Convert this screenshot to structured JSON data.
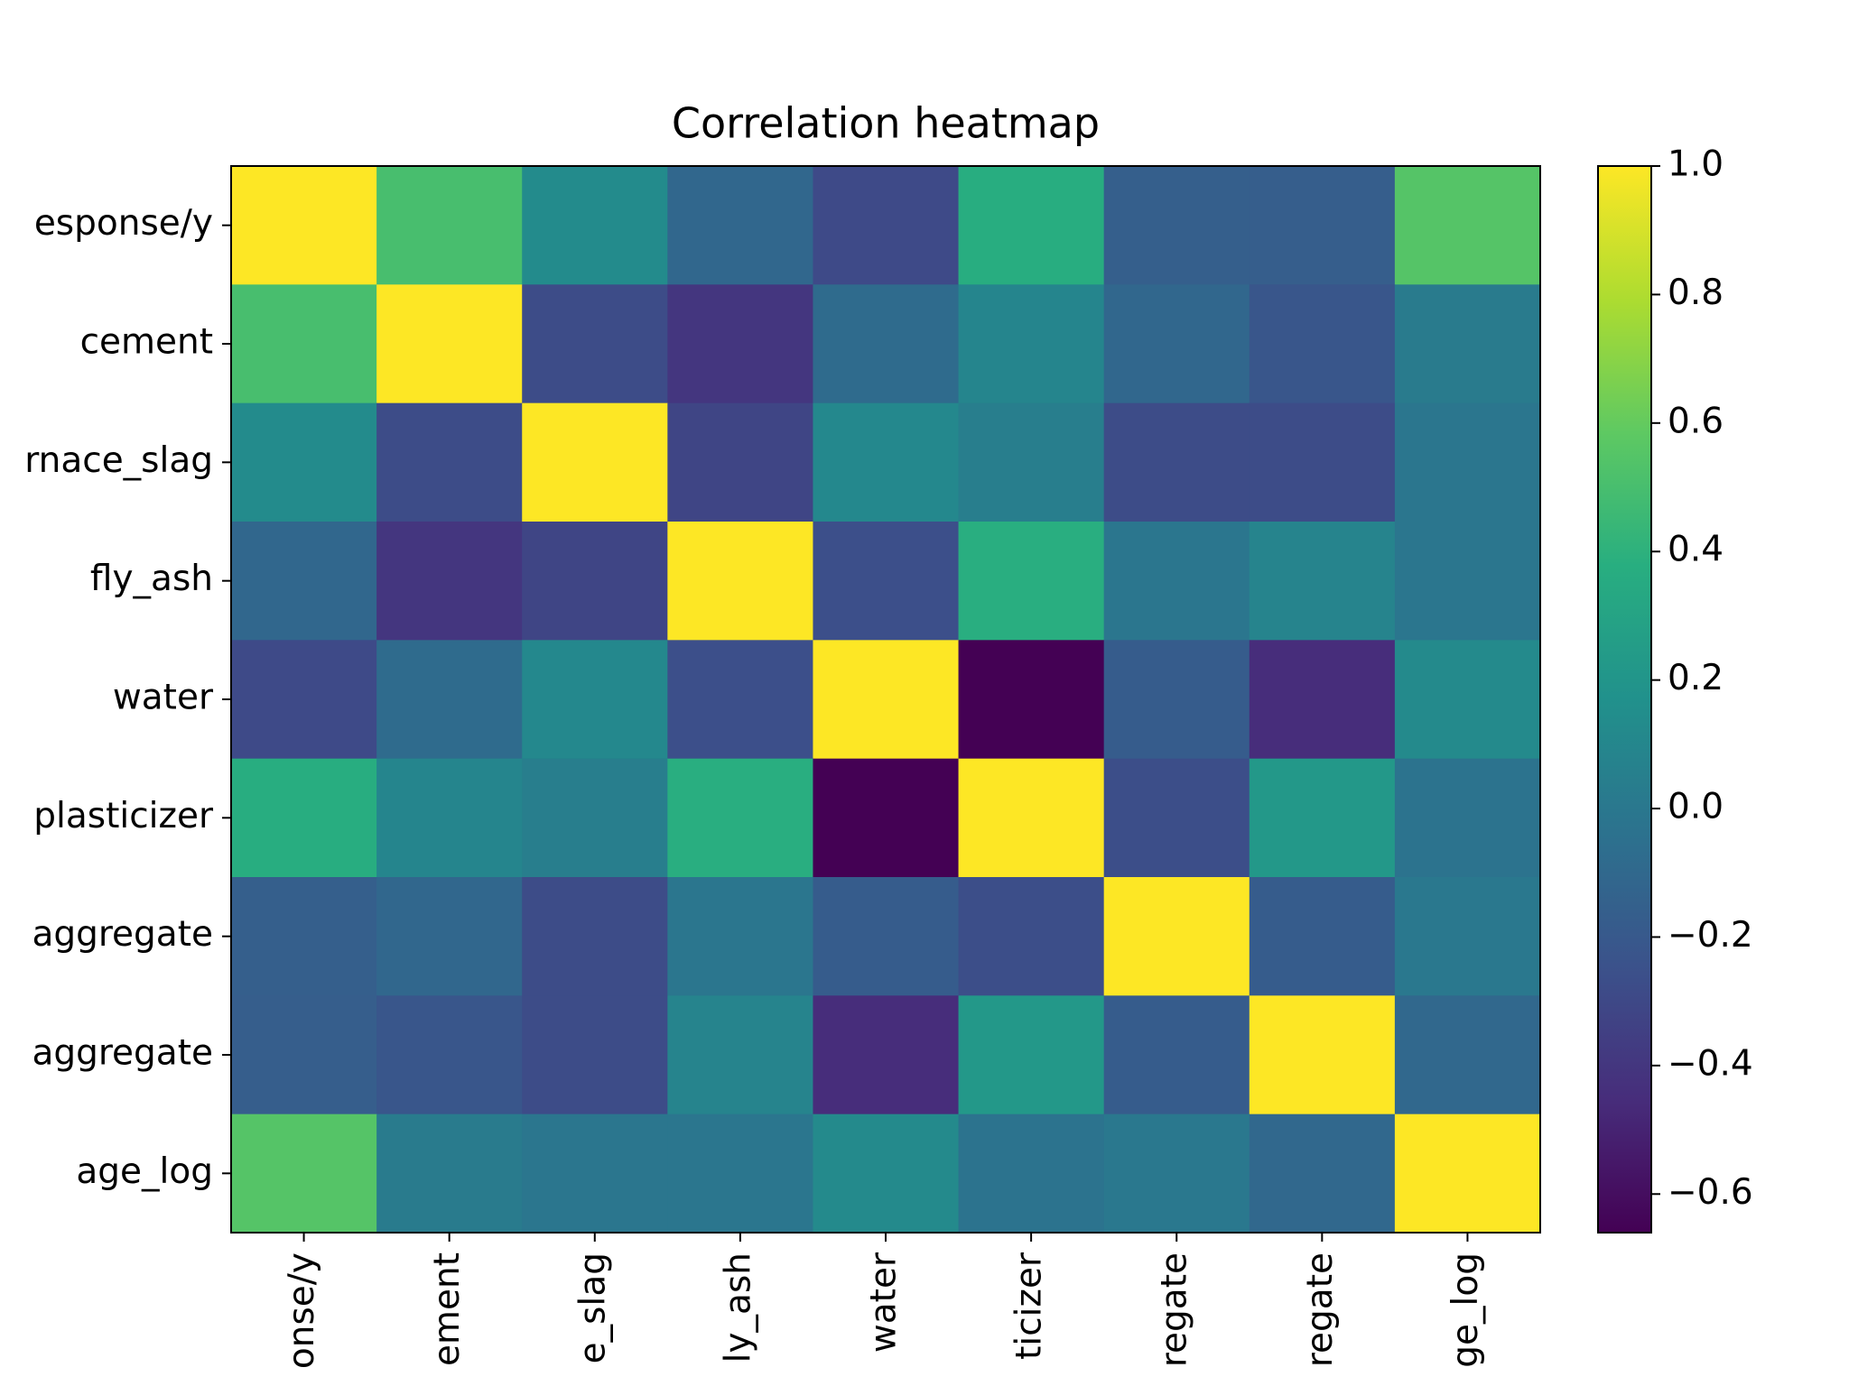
{
  "chart_data": {
    "type": "heatmap",
    "title": "Correlation heatmap",
    "y_categories": [
      "esponse/y",
      "cement",
      "rnace_slag",
      "fly_ash",
      "water",
      "plasticizer",
      "aggregate",
      "aggregate",
      "age_log"
    ],
    "x_categories": [
      "onse/y",
      "ement",
      "e_slag",
      "ly_ash",
      "water",
      "ticizer",
      "regate",
      "regate",
      "ge_log"
    ],
    "values": [
      [
        1.0,
        0.5,
        0.13,
        -0.11,
        -0.29,
        0.37,
        -0.16,
        -0.17,
        0.55
      ],
      [
        0.5,
        1.0,
        -0.28,
        -0.4,
        -0.08,
        0.09,
        -0.11,
        -0.22,
        0.02
      ],
      [
        0.13,
        -0.28,
        1.0,
        -0.32,
        0.11,
        0.04,
        -0.28,
        -0.28,
        -0.01
      ],
      [
        -0.11,
        -0.4,
        -0.32,
        1.0,
        -0.26,
        0.38,
        -0.01,
        0.08,
        -0.01
      ],
      [
        -0.29,
        -0.08,
        0.11,
        -0.26,
        1.0,
        -0.66,
        -0.18,
        -0.45,
        0.12
      ],
      [
        0.37,
        0.09,
        0.04,
        0.38,
        -0.66,
        1.0,
        -0.27,
        0.22,
        -0.03
      ],
      [
        -0.16,
        -0.11,
        -0.28,
        -0.01,
        -0.18,
        -0.27,
        1.0,
        -0.18,
        0.0
      ],
      [
        -0.17,
        -0.22,
        -0.28,
        0.08,
        -0.45,
        0.22,
        -0.18,
        1.0,
        -0.1
      ],
      [
        0.55,
        0.02,
        -0.01,
        -0.01,
        0.12,
        -0.03,
        0.0,
        -0.1,
        1.0
      ]
    ],
    "colormap": "viridis",
    "clim": [
      -0.66,
      1.0
    ],
    "cticks": [
      {
        "value": 1.0,
        "label": "1.0"
      },
      {
        "value": 0.8,
        "label": "0.8"
      },
      {
        "value": 0.6,
        "label": "0.6"
      },
      {
        "value": 0.4,
        "label": "0.4"
      },
      {
        "value": 0.2,
        "label": "0.2"
      },
      {
        "value": 0.0,
        "label": "0.0"
      },
      {
        "value": -0.2,
        "label": "−0.2"
      },
      {
        "value": -0.4,
        "label": "−0.4"
      },
      {
        "value": -0.6,
        "label": "−0.6"
      }
    ]
  }
}
